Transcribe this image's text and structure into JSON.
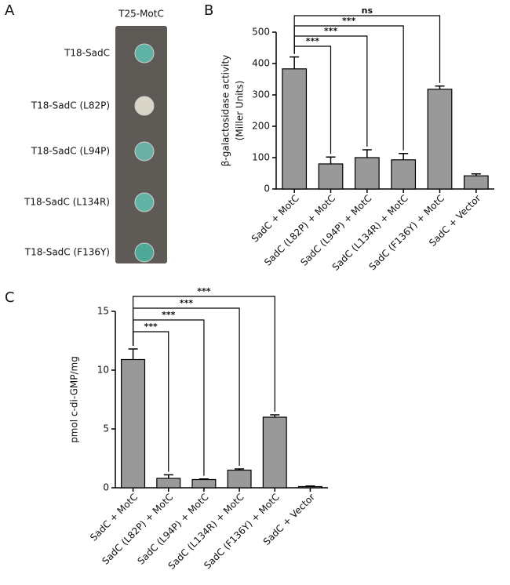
{
  "panel_a": {
    "letter": "A",
    "header": "T25-MotC",
    "rows": [
      "T18-SadC",
      "T18-SadC (L82P)",
      "T18-SadC (L94P)",
      "T18-SadC (L134R)",
      "T18-SadC (F136Y)"
    ]
  },
  "chart_data": [
    {
      "type": "bar",
      "panel": "B",
      "y_label": [
        "β-galactosidase activity",
        "(Miller Units)"
      ],
      "categories": [
        "SadC + MotC",
        "SadC (L82P) + MotC",
        "SadC (L94P) + MotC",
        "SadC (L134R) + MotC",
        "SadC (F136Y) + MotC",
        "SadC + Vector"
      ],
      "values": [
        383,
        80,
        100,
        93,
        318,
        42
      ],
      "errors": [
        38,
        22,
        25,
        20,
        10,
        6
      ],
      "color": "#999999",
      "ylim": [
        0,
        500
      ],
      "yticks": [
        0,
        100,
        200,
        300,
        400,
        500
      ],
      "annotations": [
        "***",
        "***",
        "***",
        "ns"
      ]
    },
    {
      "type": "bar",
      "panel": "C",
      "y_label": [
        "pmol c-di-GMP/mg"
      ],
      "categories": [
        "SadC + MotC",
        "SadC (L82P) + MotC",
        "SadC (L94P) + MotC",
        "SadC (L134R) + MotC",
        "SadC (F136Y) + MotC",
        "SadC + Vector"
      ],
      "values": [
        10.9,
        0.8,
        0.7,
        1.5,
        6.0,
        0.1
      ],
      "errors": [
        0.9,
        0.3,
        0.05,
        0.1,
        0.2,
        0.05
      ],
      "color": "#999999",
      "ylim": [
        0,
        15
      ],
      "yticks": [
        0,
        5,
        10,
        15
      ],
      "annotations": [
        "***",
        "***",
        "***",
        "***"
      ]
    }
  ]
}
